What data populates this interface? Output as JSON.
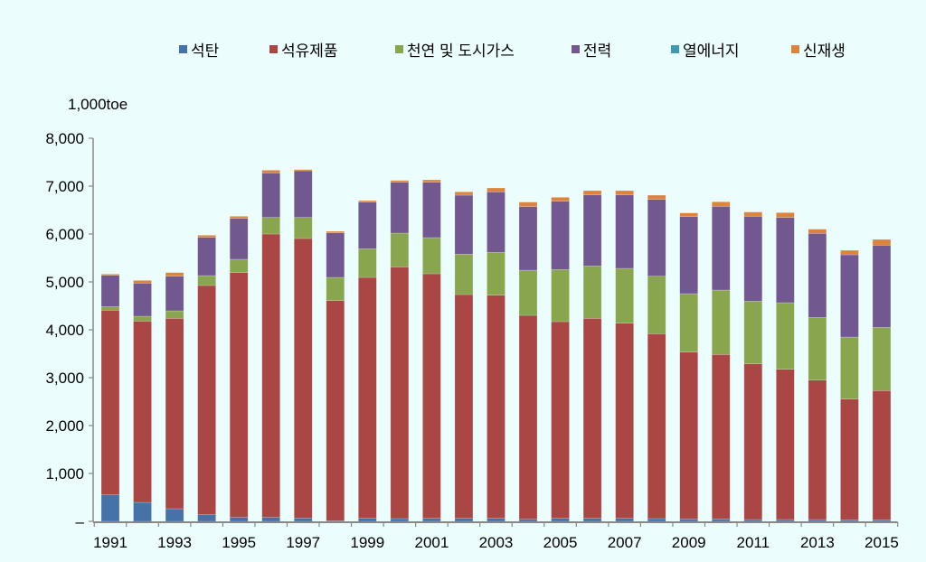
{
  "chart_data": {
    "type": "bar",
    "stacked": true,
    "title": "",
    "xlabel": "",
    "ylabel": "1,000toe",
    "ylim": [
      0,
      8000
    ],
    "yticks": [
      0,
      1000,
      2000,
      3000,
      4000,
      5000,
      6000,
      7000,
      8000
    ],
    "ytick_labels": [
      "–",
      "1,000",
      "2,000",
      "3,000",
      "4,000",
      "5,000",
      "6,000",
      "7,000",
      "8,000"
    ],
    "grid": false,
    "legend_position": "top",
    "categories": [
      "1991",
      "1992",
      "1993",
      "1994",
      "1995",
      "1996",
      "1997",
      "1998",
      "1999",
      "2000",
      "2001",
      "2002",
      "2003",
      "2004",
      "2005",
      "2006",
      "2007",
      "2008",
      "2009",
      "2010",
      "2011",
      "2012",
      "2013",
      "2014",
      "2015"
    ],
    "xtick_labels": [
      "1991",
      "",
      "1993",
      "",
      "1995",
      "",
      "1997",
      "",
      "1999",
      "",
      "2001",
      "",
      "2003",
      "",
      "2005",
      "",
      "2007",
      "",
      "2009",
      "",
      "2011",
      "",
      "2013",
      "",
      "2015"
    ],
    "series": [
      {
        "name": "석탄",
        "color": "#4572A7",
        "values": [
          553,
          396,
          264,
          138,
          82,
          82,
          69,
          10,
          63,
          57,
          63,
          63,
          63,
          44,
          63,
          63,
          63,
          57,
          50,
          50,
          38,
          38,
          38,
          25,
          25
        ]
      },
      {
        "name": "석유제품",
        "color": "#AA4643",
        "values": [
          3856,
          3786,
          3975,
          4787,
          5113,
          5918,
          5837,
          4600,
          5031,
          5257,
          5107,
          4673,
          4660,
          4258,
          4107,
          4176,
          4075,
          3861,
          3485,
          3434,
          3251,
          3138,
          2912,
          2528,
          2705
        ]
      },
      {
        "name": "천연 및 도시가스",
        "color": "#89A54E",
        "values": [
          75,
          101,
          157,
          207,
          277,
          346,
          440,
          484,
          598,
          705,
          755,
          843,
          893,
          943,
          1088,
          1094,
          1145,
          1201,
          1220,
          1346,
          1308,
          1390,
          1308,
          1296,
          1320
        ]
      },
      {
        "name": "전력",
        "color": "#71588F",
        "values": [
          654,
          692,
          723,
          799,
          855,
          931,
          975,
          931,
          975,
          1063,
          1157,
          1232,
          1265,
          1327,
          1428,
          1485,
          1535,
          1604,
          1610,
          1749,
          1774,
          1780,
          1755,
          1717,
          1717
        ]
      },
      {
        "name": "열에너지",
        "color": "#4198AF",
        "values": [
          0,
          0,
          0,
          0,
          0,
          0,
          0,
          0,
          0,
          0,
          0,
          0,
          0,
          0,
          0,
          0,
          0,
          0,
          0,
          0,
          0,
          0,
          0,
          0,
          0
        ]
      },
      {
        "name": "신재생",
        "color": "#DB843D",
        "values": [
          26,
          56,
          76,
          44,
          44,
          56,
          25,
          32,
          31,
          37,
          50,
          70,
          81,
          95,
          81,
          88,
          88,
          88,
          75,
          94,
          88,
          101,
          88,
          94,
          120
        ]
      }
    ]
  }
}
